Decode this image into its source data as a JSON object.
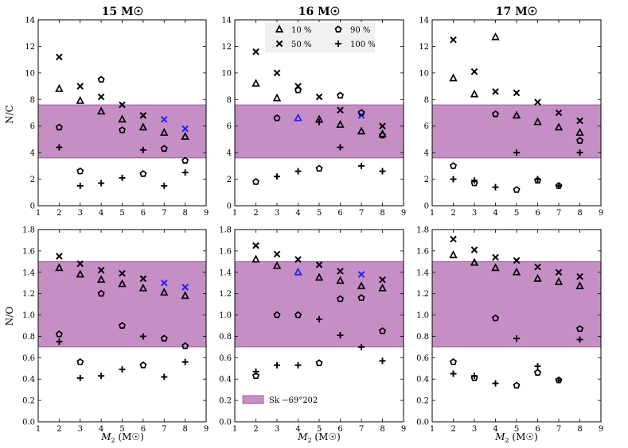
{
  "colors": {
    "band": "#c58fc6",
    "band_edge": "#8a4f8c",
    "highlight": "#2222ee",
    "ink": "#000000",
    "legend_bg": "#f0f0f0"
  },
  "labels": {
    "xlabel": "M2 (M☉)",
    "xlabel_main": "M",
    "xlabel_sub": "2",
    "xlabel_unit": " (M☉)",
    "ylabel_top": "N/C",
    "ylabel_bottom": "N/O"
  },
  "legend": {
    "entries": [
      {
        "marker": "triangle",
        "label": "10 %"
      },
      {
        "marker": "pentagon",
        "label": "90 %"
      },
      {
        "marker": "cross",
        "label": "50 %"
      },
      {
        "marker": "plus",
        "label": "100 %"
      }
    ],
    "band_label": "Sk −69°202"
  },
  "chart_data": [
    {
      "type": "scatter",
      "title": "15 M☉",
      "title_num": "15",
      "title_unit": "M☉",
      "xlabel": "",
      "ylabel": "N/C",
      "xlim": [
        1,
        9
      ],
      "ylim": [
        0,
        14
      ],
      "xticks": [
        1,
        2,
        3,
        4,
        5,
        6,
        7,
        8,
        9
      ],
      "yticks": [
        0,
        2,
        4,
        6,
        8,
        10,
        12,
        14
      ],
      "band": [
        3.6,
        7.6
      ],
      "series": [
        {
          "name": "10 %",
          "marker": "triangle",
          "x": [
            2,
            3,
            4,
            5,
            6,
            7,
            8
          ],
          "y": [
            8.8,
            7.9,
            7.1,
            6.5,
            5.9,
            5.5,
            5.2
          ]
        },
        {
          "name": "50 %",
          "marker": "cross",
          "x": [
            2,
            3,
            4,
            5,
            6,
            7,
            8
          ],
          "y": [
            11.2,
            9.0,
            8.2,
            7.6,
            6.8,
            6.5,
            5.8
          ],
          "highlight_index": [
            5,
            6
          ]
        },
        {
          "name": "90 %",
          "marker": "pentagon",
          "x": [
            2,
            3,
            4,
            5,
            6,
            7,
            8
          ],
          "y": [
            5.9,
            2.6,
            9.5,
            5.7,
            2.4,
            4.3,
            3.4
          ]
        },
        {
          "name": "100 %",
          "marker": "plus",
          "x": [
            2,
            3,
            4,
            5,
            6,
            7,
            8
          ],
          "y": [
            4.4,
            1.5,
            1.7,
            2.1,
            4.2,
            1.5,
            2.5
          ]
        }
      ]
    },
    {
      "type": "scatter",
      "title": "16 M☉",
      "title_num": "16",
      "title_unit": "M☉",
      "xlabel": "",
      "ylabel": "",
      "xlim": [
        1,
        9
      ],
      "ylim": [
        0,
        14
      ],
      "xticks": [
        1,
        2,
        3,
        4,
        5,
        6,
        7,
        8,
        9
      ],
      "yticks": [
        0,
        2,
        4,
        6,
        8,
        10,
        12,
        14
      ],
      "band": [
        3.6,
        7.6
      ],
      "legend": "top-center",
      "series": [
        {
          "name": "10 %",
          "marker": "triangle",
          "x": [
            2,
            3,
            4,
            5,
            6,
            7,
            8
          ],
          "y": [
            9.2,
            8.1,
            6.6,
            6.5,
            6.1,
            5.6,
            5.4
          ],
          "highlight_index": [
            2
          ]
        },
        {
          "name": "50 %",
          "marker": "cross",
          "x": [
            2,
            3,
            4,
            5,
            6,
            7,
            8
          ],
          "y": [
            11.6,
            10.0,
            9.0,
            8.2,
            7.2,
            6.8,
            6.0
          ],
          "highlight_index": [
            5
          ]
        },
        {
          "name": "90 %",
          "marker": "pentagon",
          "x": [
            2,
            3,
            4,
            5,
            6,
            7,
            8
          ],
          "y": [
            1.8,
            6.6,
            8.7,
            2.8,
            8.3,
            7.0,
            5.3
          ]
        },
        {
          "name": "100 %",
          "marker": "plus",
          "x": [
            2,
            3,
            4,
            5,
            6,
            7,
            8
          ],
          "y": [
            null,
            2.2,
            2.6,
            6.3,
            4.4,
            3.0,
            2.6
          ]
        }
      ]
    },
    {
      "type": "scatter",
      "title": "17 M☉",
      "title_num": "17",
      "title_unit": "M☉",
      "xlabel": "",
      "ylabel": "",
      "xlim": [
        1,
        9
      ],
      "ylim": [
        0,
        14
      ],
      "xticks": [
        1,
        2,
        3,
        4,
        5,
        6,
        7,
        8,
        9
      ],
      "yticks": [
        0,
        2,
        4,
        6,
        8,
        10,
        12,
        14
      ],
      "band": [
        3.6,
        7.6
      ],
      "series": [
        {
          "name": "10 %",
          "marker": "triangle",
          "x": [
            2,
            3,
            4,
            5,
            6,
            7,
            8
          ],
          "y": [
            9.6,
            8.4,
            12.7,
            6.8,
            6.3,
            5.9,
            5.5
          ]
        },
        {
          "name": "50 %",
          "marker": "cross",
          "x": [
            2,
            3,
            4,
            5,
            6,
            7,
            8
          ],
          "y": [
            12.5,
            10.1,
            8.6,
            8.5,
            7.8,
            7.0,
            6.4
          ]
        },
        {
          "name": "90 %",
          "marker": "pentagon",
          "x": [
            2,
            3,
            4,
            5,
            6,
            7,
            8
          ],
          "y": [
            3.0,
            1.7,
            6.9,
            1.2,
            1.9,
            1.5,
            4.9
          ]
        },
        {
          "name": "100 %",
          "marker": "plus",
          "x": [
            2,
            3,
            4,
            5,
            6,
            7,
            8
          ],
          "y": [
            2.0,
            1.9,
            1.4,
            4.0,
            2.0,
            1.5,
            4.0
          ]
        }
      ]
    },
    {
      "type": "scatter",
      "title": "",
      "xlabel": "M2 (M☉)",
      "ylabel": "N/O",
      "xlim": [
        1,
        9
      ],
      "ylim": [
        0,
        1.8
      ],
      "xticks": [
        1,
        2,
        3,
        4,
        5,
        6,
        7,
        8,
        9
      ],
      "yticks": [
        0.0,
        0.2,
        0.4,
        0.6,
        0.8,
        1.0,
        1.2,
        1.4,
        1.6,
        1.8
      ],
      "band": [
        0.7,
        1.5
      ],
      "series": [
        {
          "name": "10 %",
          "marker": "triangle",
          "x": [
            2,
            3,
            4,
            5,
            6,
            7,
            8
          ],
          "y": [
            1.44,
            1.38,
            1.33,
            1.29,
            1.25,
            1.21,
            1.18
          ]
        },
        {
          "name": "50 %",
          "marker": "cross",
          "x": [
            2,
            3,
            4,
            5,
            6,
            7,
            8
          ],
          "y": [
            1.55,
            1.48,
            1.42,
            1.39,
            1.34,
            1.3,
            1.26
          ],
          "highlight_index": [
            5,
            6
          ]
        },
        {
          "name": "90 %",
          "marker": "pentagon",
          "x": [
            2,
            3,
            4,
            5,
            6,
            7,
            8
          ],
          "y": [
            0.82,
            0.56,
            1.2,
            0.9,
            0.53,
            0.78,
            0.71
          ]
        },
        {
          "name": "100 %",
          "marker": "plus",
          "x": [
            2,
            3,
            4,
            5,
            6,
            7,
            8
          ],
          "y": [
            0.75,
            0.41,
            0.43,
            0.49,
            0.8,
            0.42,
            0.56
          ]
        }
      ]
    },
    {
      "type": "scatter",
      "title": "",
      "xlabel": "M2 (M☉)",
      "ylabel": "",
      "xlim": [
        1,
        9
      ],
      "ylim": [
        0,
        1.8
      ],
      "xticks": [
        1,
        2,
        3,
        4,
        5,
        6,
        7,
        8,
        9
      ],
      "yticks": [
        0.0,
        0.2,
        0.4,
        0.6,
        0.8,
        1.0,
        1.2,
        1.4,
        1.6,
        1.8
      ],
      "band": [
        0.7,
        1.5
      ],
      "legend": "bottom-left",
      "series": [
        {
          "name": "10 %",
          "marker": "triangle",
          "x": [
            2,
            3,
            4,
            5,
            6,
            7,
            8
          ],
          "y": [
            1.52,
            1.46,
            1.4,
            1.35,
            1.32,
            1.27,
            1.25
          ],
          "highlight_index": [
            2
          ]
        },
        {
          "name": "50 %",
          "marker": "cross",
          "x": [
            2,
            3,
            4,
            5,
            6,
            7,
            8
          ],
          "y": [
            1.65,
            1.57,
            1.52,
            1.47,
            1.41,
            1.38,
            1.33
          ],
          "highlight_index": [
            5
          ]
        },
        {
          "name": "90 %",
          "marker": "pentagon",
          "x": [
            2,
            3,
            4,
            5,
            6,
            7,
            8
          ],
          "y": [
            0.43,
            1.0,
            1.0,
            0.55,
            1.15,
            1.16,
            0.85
          ]
        },
        {
          "name": "100 %",
          "marker": "plus",
          "x": [
            2,
            3,
            4,
            5,
            6,
            7,
            8
          ],
          "y": [
            0.47,
            0.53,
            0.53,
            0.96,
            0.81,
            0.7,
            0.57
          ]
        }
      ]
    },
    {
      "type": "scatter",
      "title": "",
      "xlabel": "M2 (M☉)",
      "ylabel": "",
      "xlim": [
        1,
        9
      ],
      "ylim": [
        0,
        1.8
      ],
      "xticks": [
        1,
        2,
        3,
        4,
        5,
        6,
        7,
        8,
        9
      ],
      "yticks": [
        0.0,
        0.2,
        0.4,
        0.6,
        0.8,
        1.0,
        1.2,
        1.4,
        1.6,
        1.8
      ],
      "band": [
        0.7,
        1.5
      ],
      "series": [
        {
          "name": "10 %",
          "marker": "triangle",
          "x": [
            2,
            3,
            4,
            5,
            6,
            7,
            8
          ],
          "y": [
            1.56,
            1.49,
            1.44,
            1.4,
            1.34,
            1.31,
            1.27
          ]
        },
        {
          "name": "50 %",
          "marker": "cross",
          "x": [
            2,
            3,
            4,
            5,
            6,
            7,
            8
          ],
          "y": [
            1.71,
            1.61,
            1.54,
            1.51,
            1.45,
            1.4,
            1.36
          ]
        },
        {
          "name": "90 %",
          "marker": "pentagon",
          "x": [
            2,
            3,
            4,
            5,
            6,
            7,
            8
          ],
          "y": [
            0.56,
            0.41,
            0.97,
            0.34,
            0.46,
            0.39,
            0.87
          ]
        },
        {
          "name": "100 %",
          "marker": "plus",
          "x": [
            2,
            3,
            4,
            5,
            6,
            7,
            8
          ],
          "y": [
            0.45,
            0.43,
            0.36,
            0.78,
            0.52,
            0.39,
            0.77
          ]
        }
      ]
    }
  ]
}
